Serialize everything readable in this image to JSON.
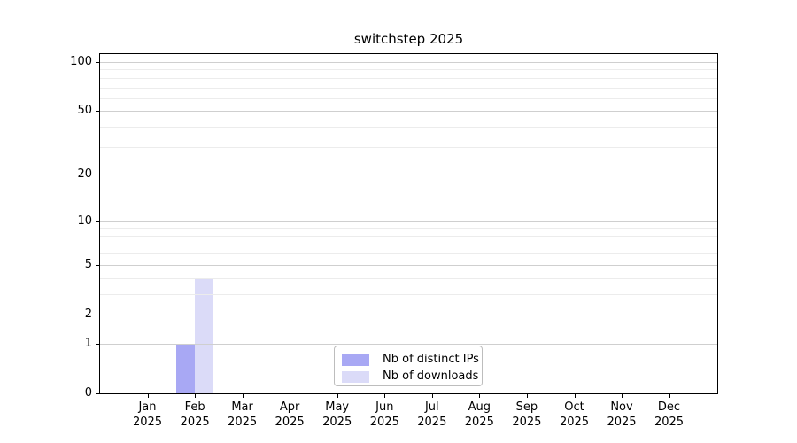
{
  "chart_data": {
    "type": "bar",
    "title": "switchstep 2025",
    "categories": [
      "Jan 2025",
      "Feb 2025",
      "Mar 2025",
      "Apr 2025",
      "May 2025",
      "Jun 2025",
      "Jul 2025",
      "Aug 2025",
      "Sep 2025",
      "Oct 2025",
      "Nov 2025",
      "Dec 2025"
    ],
    "series": [
      {
        "name": "Nb of distinct IPs",
        "color": "#a8a8f4",
        "values": [
          0,
          1,
          0,
          0,
          0,
          0,
          0,
          0,
          0,
          0,
          0,
          0
        ]
      },
      {
        "name": "Nb of downloads",
        "color": "#dbdbf8",
        "values": [
          0,
          4,
          0,
          0,
          0,
          0,
          0,
          0,
          0,
          0,
          0,
          0
        ]
      }
    ],
    "y_axis": {
      "scale": "log10(1+x)",
      "major_ticks": [
        0,
        1,
        2,
        5,
        10,
        20,
        50,
        100
      ],
      "minor_ticks": [
        3,
        4,
        6,
        7,
        8,
        9,
        30,
        40,
        60,
        70,
        80,
        90
      ]
    },
    "legend": {
      "position": "lower center"
    },
    "grid": {
      "major_color": "#cfcfcf",
      "minor_color": "#ececec"
    }
  }
}
